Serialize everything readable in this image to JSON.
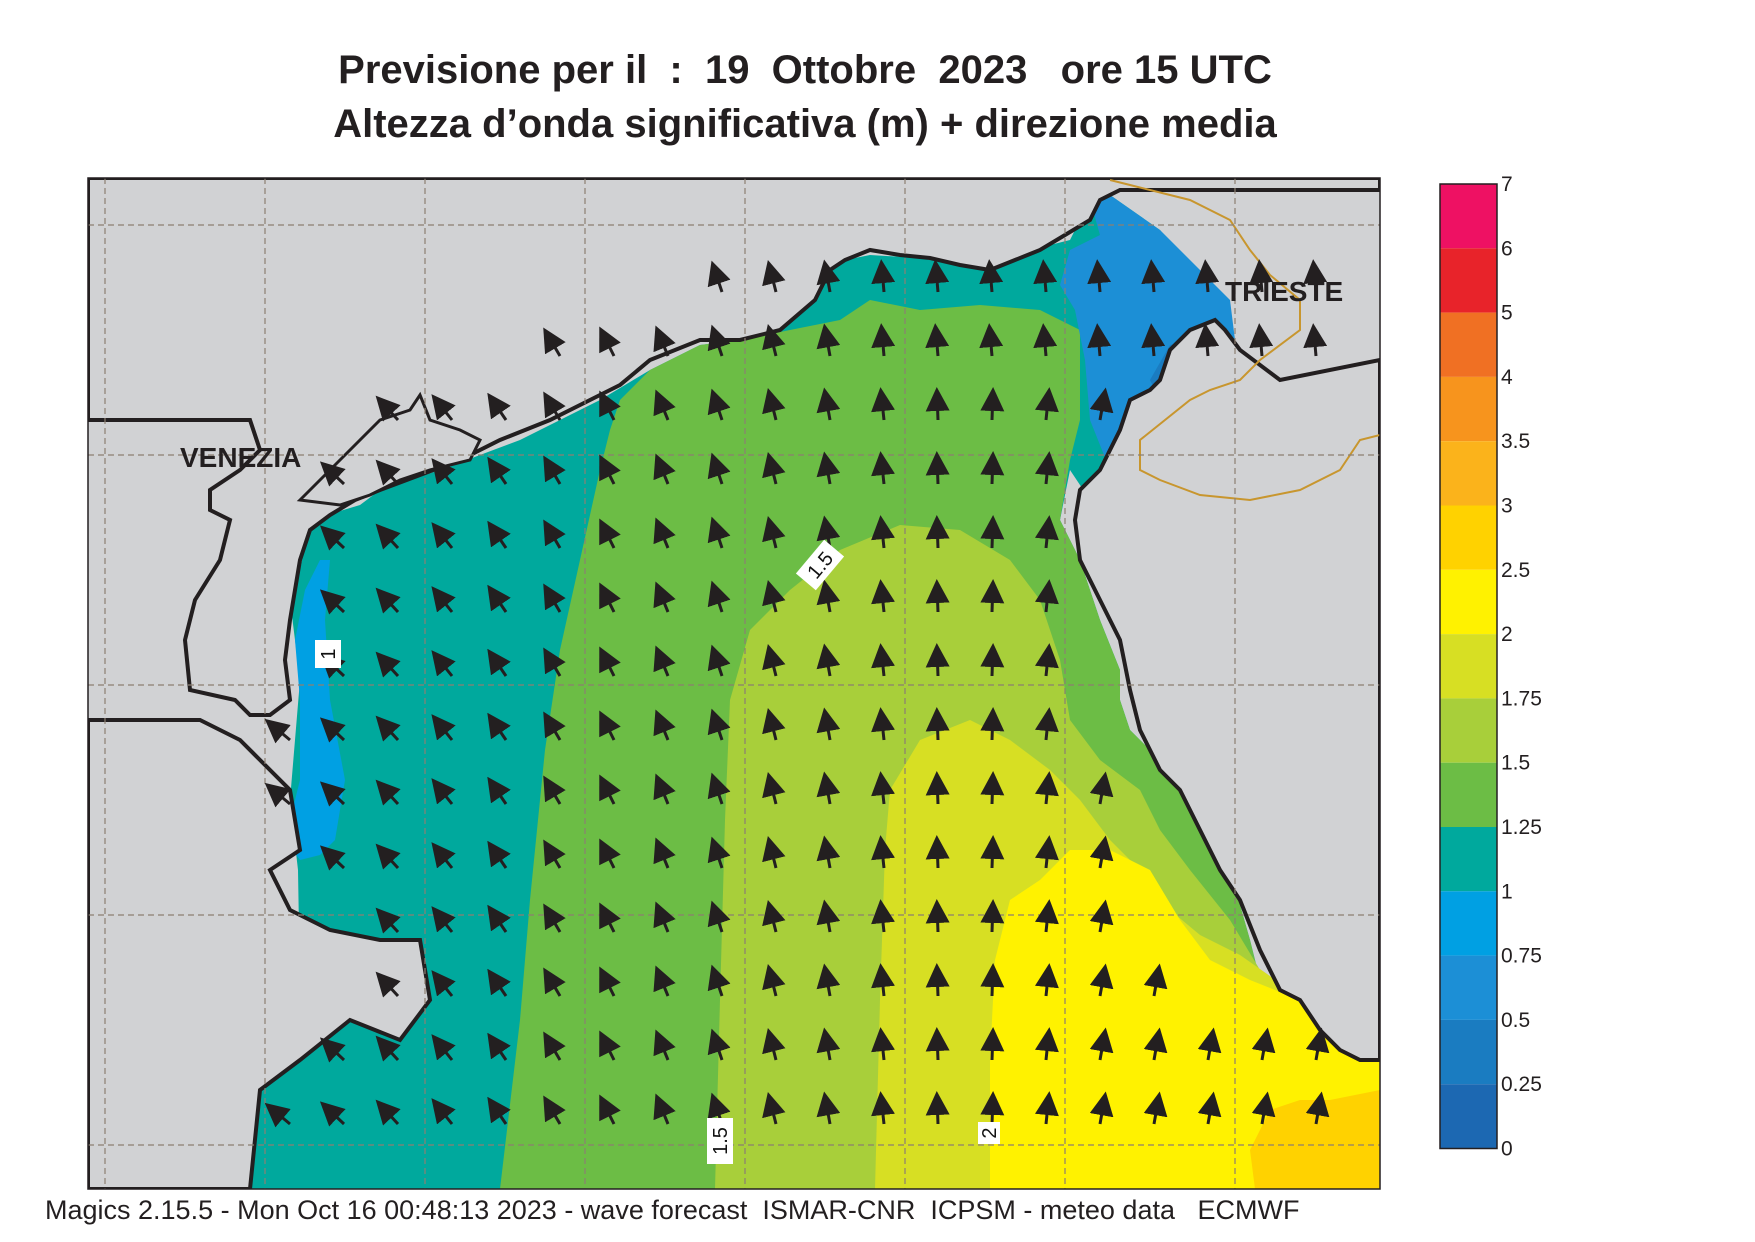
{
  "title_line1": "Previsione per il  :  19  Ottobre  2023   ore 15 UTC",
  "title_line2": "Altezza d’onda significativa (m) + direzione media",
  "places": {
    "venezia": "VENEZIA",
    "trieste": "TRIESTE"
  },
  "contour_labels": {
    "c1": "1",
    "c15a": "1.5",
    "c15b": "1.5",
    "c2": "2"
  },
  "legend": {
    "levels": [
      {
        "value": "7",
        "color": "#ee1163"
      },
      {
        "value": "6",
        "color": "#e8232a"
      },
      {
        "value": "5",
        "color": "#f07023"
      },
      {
        "value": "4",
        "color": "#f7941d"
      },
      {
        "value": "3.5",
        "color": "#fbb31b"
      },
      {
        "value": "3",
        "color": "#ffd200"
      },
      {
        "value": "2.5",
        "color": "#fff200"
      },
      {
        "value": "2",
        "color": "#d7df23"
      },
      {
        "value": "1.75",
        "color": "#a8cf3a"
      },
      {
        "value": "1.5",
        "color": "#6cbd45"
      },
      {
        "value": "1.25",
        "color": "#00a99d"
      },
      {
        "value": "1",
        "color": "#00a0e3"
      },
      {
        "value": "0.75",
        "color": "#1c8fd6"
      },
      {
        "value": "0.5",
        "color": "#1a7cc1"
      },
      {
        "value": "0.25",
        "color": "#1c68b2"
      },
      {
        "value": "0",
        "color": ""
      }
    ]
  },
  "colors": {
    "land": "#d1d2d4",
    "grid": "#8c7f72",
    "border": "#c8962e",
    "coast": "#231f20"
  },
  "footer": "Magics 2.15.5 - Mon Oct 16 00:48:13 2023 - wave forecast  ISMAR-CNR  ICPSM - meteo data   ECMWF"
}
